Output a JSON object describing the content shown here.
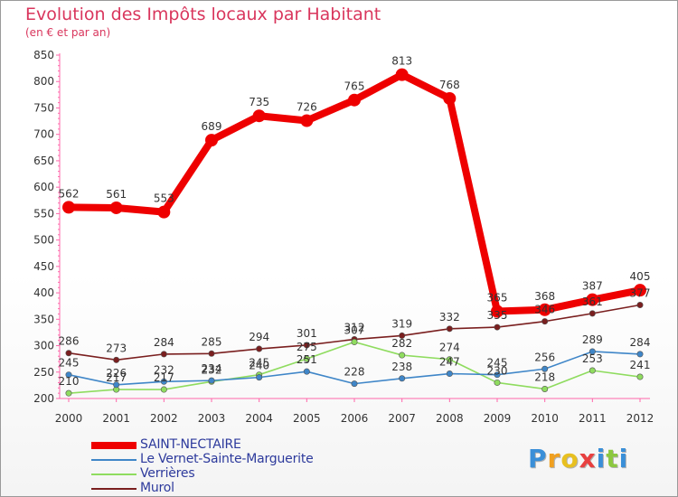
{
  "chart_data": {
    "type": "line",
    "title": "Evolution des Impôts locaux par Habitant",
    "subtitle": "(en € et par an)",
    "xlabel": "",
    "ylabel": "",
    "ylim": [
      200,
      850
    ],
    "ytick_step": 50,
    "grid": false,
    "x": [
      "2000",
      "2001",
      "2002",
      "2003",
      "2004",
      "2005",
      "2006",
      "2007",
      "2008",
      "2009",
      "2010",
      "2011",
      "2012"
    ],
    "series": [
      {
        "name": "SAINT-NECTAIRE",
        "color": "#ee0000",
        "values": [
          562,
          561,
          553,
          689,
          735,
          726,
          765,
          813,
          768,
          365,
          368,
          387,
          405
        ],
        "labels": [
          "562",
          "561",
          "553",
          "689",
          "735",
          "726",
          "765",
          "813",
          "768",
          "365",
          "368",
          "387",
          "405"
        ]
      },
      {
        "name": "Le Vernet-Sainte-Marguerite",
        "color": "#3f86c8",
        "values": [
          245,
          226,
          232,
          234,
          240,
          251,
          228,
          238,
          247,
          245,
          256,
          289,
          284
        ],
        "labels": [
          "245",
          "226",
          "232",
          "234",
          "240",
          "251",
          "228",
          "238",
          "247",
          "245",
          "256",
          "289",
          "284"
        ]
      },
      {
        "name": "Verrières",
        "color": "#8fdc5f",
        "values": [
          210,
          217,
          217,
          232,
          245,
          275,
          307,
          282,
          274,
          230,
          218,
          253,
          241
        ],
        "labels": [
          "210",
          "217",
          "217",
          "232",
          "245",
          "275",
          "307",
          "282",
          "274",
          "230",
          "218",
          "253",
          "241"
        ]
      },
      {
        "name": "Murol",
        "color": "#7a1f1f",
        "values": [
          286,
          273,
          284,
          285,
          294,
          301,
          312,
          319,
          332,
          335,
          346,
          361,
          377
        ],
        "labels": [
          "286",
          "273",
          "284",
          "285",
          "294",
          "301",
          "312",
          "319",
          "332",
          "335",
          "346",
          "361",
          "377"
        ]
      }
    ]
  },
  "legend": {
    "items": [
      {
        "label": "SAINT-NECTAIRE",
        "color": "#ee0000"
      },
      {
        "label": "Le Vernet-Sainte-Marguerite",
        "color": "#3f86c8"
      },
      {
        "label": "Verrières",
        "color": "#8fdc5f"
      },
      {
        "label": "Murol",
        "color": "#7a1f1f"
      }
    ]
  },
  "logo": {
    "letters": [
      "P",
      "r",
      "o",
      "x",
      "i",
      "t",
      "i"
    ],
    "colors": [
      "#3a8fd8",
      "#f0a020",
      "#e8c020",
      "#e84040",
      "#3a8fd8",
      "#8cc840",
      "#3a8fd8"
    ]
  }
}
